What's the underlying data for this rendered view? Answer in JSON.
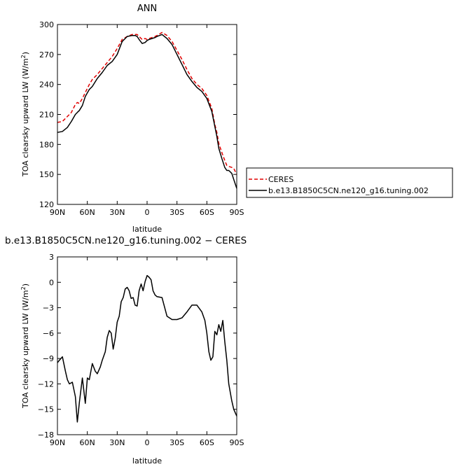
{
  "chart_data": [
    {
      "type": "line",
      "title": "ANN",
      "xlabel": "latitude",
      "ylabel": "TOA clearsky upward LW (W/m",
      "ylabel_sup": "2",
      "ylabel_close": ")",
      "xlim": [
        90,
        -90
      ],
      "ylim": [
        120,
        300
      ],
      "xticks": [
        90,
        60,
        30,
        0,
        -30,
        -60,
        -90
      ],
      "xtick_labels": [
        "90N",
        "60N",
        "30N",
        "0",
        "30S",
        "60S",
        "90S"
      ],
      "yticks": [
        120,
        150,
        180,
        210,
        240,
        270,
        300
      ],
      "ytick_labels": [
        "120",
        "150",
        "180",
        "210",
        "240",
        "270",
        "300"
      ],
      "legend": "outside-right",
      "series": [
        {
          "name": "CERES",
          "color": "#e00000",
          "dash": true,
          "x": [
            90,
            85,
            80,
            76,
            72,
            70,
            68,
            65,
            62,
            58,
            55,
            50,
            45,
            40,
            35,
            30,
            25,
            20,
            15,
            12,
            10,
            8,
            5,
            2,
            0,
            -2,
            -5,
            -8,
            -10,
            -15,
            -20,
            -25,
            -30,
            -35,
            -40,
            -45,
            -50,
            -55,
            -60,
            -65,
            -68,
            -70,
            -72,
            -75,
            -78,
            -80,
            -82,
            -85,
            -87,
            -90
          ],
          "y": [
            202,
            203,
            208,
            212,
            220,
            222,
            221,
            226,
            232,
            240,
            245,
            250,
            256,
            262,
            268,
            276,
            285,
            288,
            290,
            290,
            290,
            288,
            285,
            286,
            285,
            286,
            287,
            288,
            289,
            292,
            289,
            283,
            274,
            265,
            255,
            246,
            240,
            236,
            229,
            216,
            200,
            192,
            181,
            172,
            164,
            159,
            158,
            157,
            156,
            150
          ]
        },
        {
          "name": "b.e13.B1850C5CN.ne120_g16.tuning.002",
          "color": "#000000",
          "dash": false,
          "x": [
            90,
            85,
            80,
            76,
            72,
            70,
            68,
            65,
            62,
            58,
            55,
            50,
            45,
            40,
            35,
            30,
            25,
            20,
            15,
            12,
            10,
            8,
            5,
            2,
            0,
            -2,
            -5,
            -8,
            -10,
            -15,
            -20,
            -25,
            -30,
            -35,
            -40,
            -45,
            -50,
            -55,
            -60,
            -65,
            -68,
            -70,
            -72,
            -75,
            -78,
            -80,
            -82,
            -85,
            -87,
            -90
          ],
          "y": [
            192,
            193,
            197,
            203,
            210,
            212,
            214,
            219,
            228,
            235,
            238,
            246,
            252,
            259,
            263,
            270,
            283,
            288,
            289,
            289,
            288,
            285,
            281,
            282,
            284,
            285,
            286,
            287,
            288,
            290,
            286,
            280,
            270,
            260,
            250,
            243,
            237,
            233,
            226,
            213,
            198,
            188,
            176,
            166,
            157,
            154,
            154,
            151,
            145,
            136
          ]
        }
      ]
    },
    {
      "type": "line",
      "title": "b.e13.B1850C5CN.ne120_g16.tuning.002 − CERES",
      "xlabel": "latitude",
      "ylabel": "TOA clearsky upward LW (W/m",
      "ylabel_sup": "2",
      "ylabel_close": ")",
      "xlim": [
        90,
        -90
      ],
      "ylim": [
        -18,
        3
      ],
      "xticks": [
        90,
        60,
        30,
        0,
        -30,
        -60,
        -90
      ],
      "xtick_labels": [
        "90N",
        "60N",
        "30N",
        "0",
        "30S",
        "60S",
        "90S"
      ],
      "yticks": [
        -18,
        -15,
        -12,
        -9,
        -6,
        -3,
        0,
        3
      ],
      "ytick_labels": [
        "−18",
        "−15",
        "−12",
        "−9",
        "−6",
        "−3",
        "0",
        "3"
      ],
      "series": [
        {
          "color": "#000000",
          "dash": false,
          "x": [
            90,
            88,
            85,
            82,
            80,
            78,
            75,
            72,
            70,
            68,
            65,
            62,
            60,
            58,
            55,
            52,
            50,
            47,
            45,
            42,
            40,
            38,
            36,
            34,
            32,
            30,
            28,
            26,
            24,
            22,
            20,
            18,
            16,
            14,
            12,
            10,
            8,
            6,
            4,
            2,
            0,
            -2,
            -4,
            -6,
            -8,
            -10,
            -15,
            -20,
            -25,
            -30,
            -35,
            -40,
            -45,
            -50,
            -55,
            -58,
            -60,
            -62,
            -64,
            -66,
            -68,
            -70,
            -72,
            -74,
            -76,
            -78,
            -80,
            -82,
            -85,
            -87,
            -90
          ],
          "y": [
            -9.5,
            -9.2,
            -8.8,
            -10.5,
            -11.5,
            -12,
            -11.8,
            -13.5,
            -16.5,
            -14.2,
            -11.3,
            -14.3,
            -11.3,
            -11.5,
            -9.6,
            -10.5,
            -10.8,
            -10.0,
            -9.2,
            -8.2,
            -6.5,
            -5.7,
            -6.0,
            -7.9,
            -6.6,
            -4.7,
            -4.0,
            -2.3,
            -1.8,
            -0.8,
            -0.6,
            -1.0,
            -1.9,
            -1.8,
            -2.7,
            -2.8,
            -1.0,
            -0.2,
            -1.0,
            0.1,
            0.8,
            0.6,
            0.3,
            -1.0,
            -1.5,
            -1.7,
            -1.8,
            -4.0,
            -4.4,
            -4.4,
            -4.2,
            -3.5,
            -2.7,
            -2.7,
            -3.5,
            -4.5,
            -6.0,
            -8.2,
            -9.2,
            -8.8,
            -5.8,
            -6.2,
            -5.0,
            -5.8,
            -4.5,
            -7.0,
            -9.2,
            -12.0,
            -14.0,
            -15.0,
            -15.8
          ]
        }
      ]
    }
  ]
}
